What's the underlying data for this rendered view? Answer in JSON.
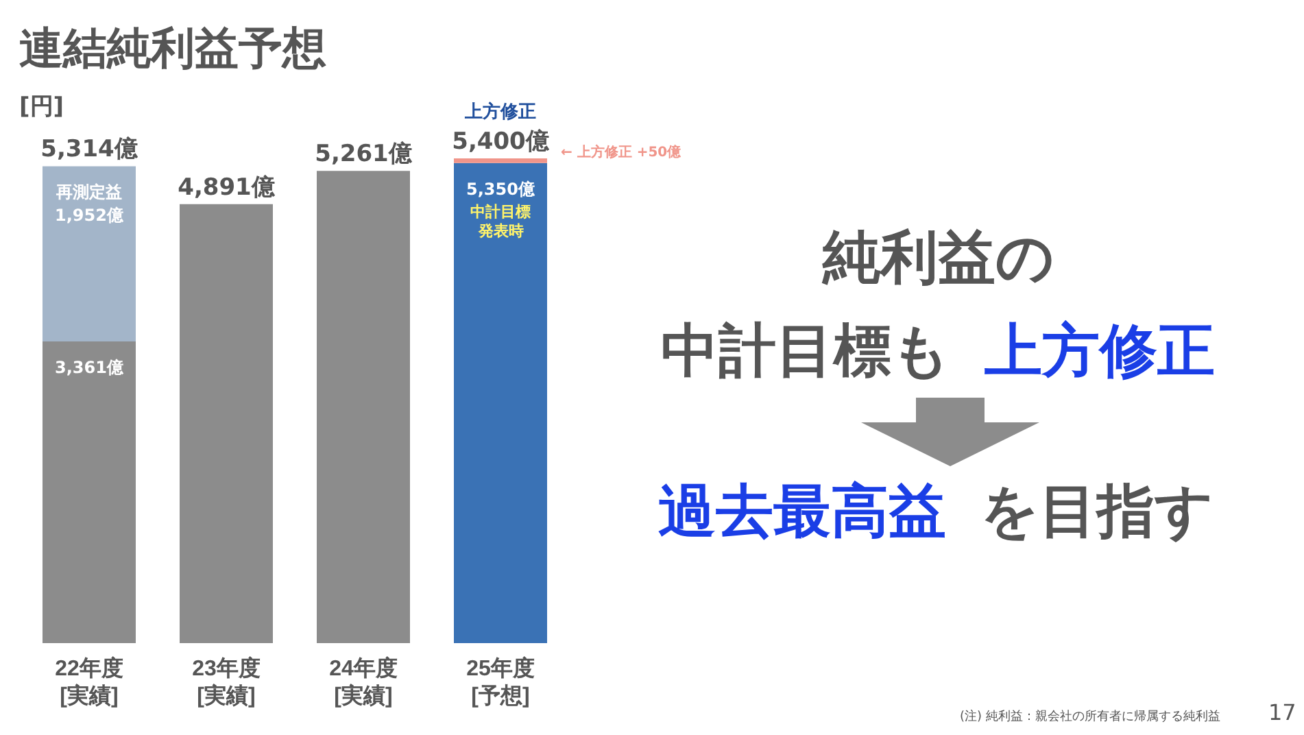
{
  "chart_data": {
    "type": "bar",
    "title": "連結純利益予想",
    "ylabel": "[円]",
    "stacked": true,
    "categories": [
      "22年度 [実績]",
      "23年度 [実績]",
      "24年度 [実績]",
      "25年度 [予想]"
    ],
    "series": [
      {
        "values": [
          3361,
          4891,
          5261,
          5350
        ],
        "colors": [
          "#8c8c8c",
          "#8c8c8c",
          "#8c8c8c",
          "#3a72b5"
        ],
        "value_labels": [
          "3,361億",
          null,
          null,
          "5,350億"
        ]
      },
      {
        "values": [
          1952,
          null,
          null,
          50
        ],
        "colors": [
          "#a3b5c9",
          null,
          null,
          "#f0958a"
        ],
        "value_labels": [
          "再測定益\n1,952億",
          null,
          null,
          null
        ]
      }
    ],
    "totals": [
      "5,314億",
      "4,891億",
      "5,261億",
      "5,400億"
    ],
    "annotations": [
      {
        "text": "上方修正",
        "x": "25年度 [予想]",
        "y": 5400
      },
      "← 上方修正 +50億",
      {
        "text": "中計目標",
        "x": "25年度 [予想]",
        "y": 5350
      },
      "発表時",
      "純利益の",
      "中計目標も",
      "上方修正",
      "過去最高益",
      "を目指す",
      "(注) 純利益：親会社の所有者に帰属する純利益",
      "17"
    ]
  }
}
